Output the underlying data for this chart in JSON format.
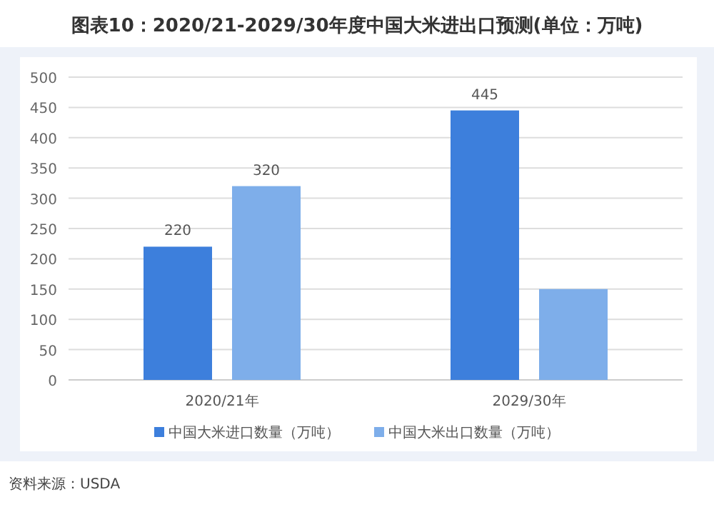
{
  "chart_data": {
    "type": "bar",
    "title": "图表10：2020/21-2029/30年度中国大米进出口预测(单位：万吨)",
    "categories": [
      "2020/21年",
      "2029/30年"
    ],
    "series": [
      {
        "name": "中国大米进口数量（万吨）",
        "color": "#3d7fdc",
        "values": [
          220,
          445
        ],
        "value_labels": [
          "220",
          "445"
        ]
      },
      {
        "name": "中国大米出口数量（万吨）",
        "color": "#7eaeea",
        "values": [
          320,
          150
        ],
        "value_labels": [
          "320",
          null
        ]
      }
    ],
    "ylim": [
      0,
      500
    ],
    "yticks": [
      0,
      50,
      100,
      150,
      200,
      250,
      300,
      350,
      400,
      450,
      500
    ],
    "grid": "y",
    "legend": "bottom",
    "annotations": [
      "资料来源：USDA"
    ]
  }
}
